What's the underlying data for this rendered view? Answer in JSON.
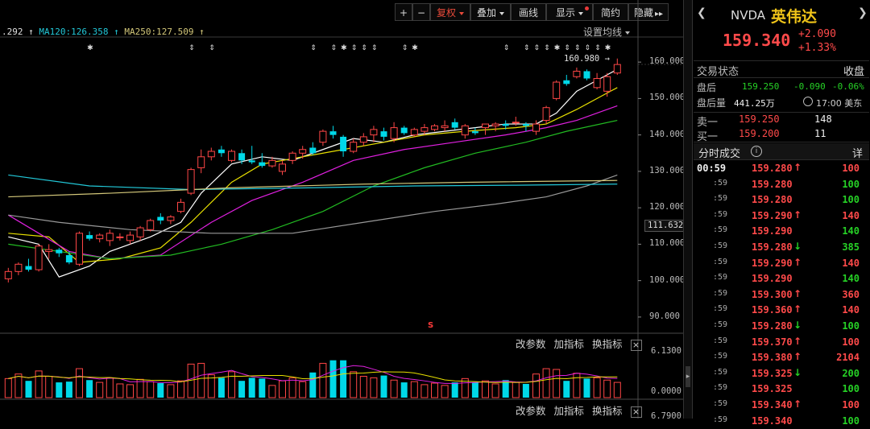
{
  "toolbar": {
    "plus": "+",
    "minus": "−",
    "fuquan": "复权",
    "diejia": "叠加",
    "huaxian": "画线",
    "xianshi": "显示",
    "jianyue": "简约",
    "yincang": "隐藏",
    "yincang_arrows": "▸▸"
  },
  "ma_bar": {
    "ma_prev_value": ".292",
    "ma120": "MA120:126.358",
    "ma250": "MA250:127.509",
    "settings": "设置均线"
  },
  "price_axis": {
    "ticks": [
      "160.000",
      "150.000",
      "140.000",
      "130.000",
      "120.000",
      "110.000",
      "100.000",
      "90.000"
    ],
    "current_label": "111.632",
    "high_annotation": "160.980"
  },
  "indicator_controls": {
    "change_params": "改参数",
    "add_indicator": "加指标",
    "switch_indicator": "换指标",
    "close": "×"
  },
  "volume_axis": {
    "top": "6.1300",
    "bottom": "0.0000",
    "lower_cut": "6.7900"
  },
  "marker_s": "S",
  "stock": {
    "code": "NVDA",
    "name": "英伟达",
    "price": "159.340",
    "change": "+2.090",
    "change_pct": "+1.33%",
    "status_label": "交易状态",
    "status_value": "收盘",
    "after_label": "盘后",
    "after_price": "159.250",
    "after_change": "-0.090",
    "after_pct": "-0.06%",
    "after_vol_label": "盘后量",
    "after_vol": "441.25万",
    "time": "17:00 美东",
    "sell1_label": "卖一",
    "sell1_price": "159.250",
    "sell1_vol": "148",
    "buy1_label": "买一",
    "buy1_price": "159.200",
    "buy1_vol": "11",
    "ticks_title": "分时成交",
    "detail": "详"
  },
  "trades": [
    {
      "time": "00:59",
      "price": "159.280",
      "dir": "up",
      "vol": "100"
    },
    {
      "time": ":59",
      "price": "159.280",
      "dir": "",
      "vol": "100"
    },
    {
      "time": ":59",
      "price": "159.280",
      "dir": "",
      "vol": "100"
    },
    {
      "time": ":59",
      "price": "159.290",
      "dir": "up",
      "vol": "140"
    },
    {
      "time": ":59",
      "price": "159.290",
      "dir": "",
      "vol": "140"
    },
    {
      "time": ":59",
      "price": "159.280",
      "dir": "down",
      "vol": "385"
    },
    {
      "time": ":59",
      "price": "159.290",
      "dir": "up",
      "vol": "140"
    },
    {
      "time": ":59",
      "price": "159.290",
      "dir": "",
      "vol": "140"
    },
    {
      "time": ":59",
      "price": "159.300",
      "dir": "up",
      "vol": "360"
    },
    {
      "time": ":59",
      "price": "159.360",
      "dir": "up",
      "vol": "140"
    },
    {
      "time": ":59",
      "price": "159.280",
      "dir": "down",
      "vol": "100"
    },
    {
      "time": ":59",
      "price": "159.370",
      "dir": "up",
      "vol": "100"
    },
    {
      "time": ":59",
      "price": "159.380",
      "dir": "up",
      "vol": "2104"
    },
    {
      "time": ":59",
      "price": "159.325",
      "dir": "down",
      "vol": "200"
    },
    {
      "time": ":59",
      "price": "159.325",
      "dir": "",
      "vol": "100"
    },
    {
      "time": ":59",
      "price": "159.340",
      "dir": "up",
      "vol": "100"
    },
    {
      "time": ":59",
      "price": "159.340",
      "dir": "",
      "vol": "100"
    }
  ],
  "chart_data": {
    "type": "candlestick",
    "ylim": [
      86,
      166
    ],
    "candles": [
      [
        100.5,
        103.5,
        99.5,
        102.5
      ],
      [
        102.5,
        105.0,
        101.5,
        104.5
      ],
      [
        104.0,
        106.0,
        102.5,
        103.0
      ],
      [
        103.0,
        110.0,
        102.5,
        109.5
      ],
      [
        108.0,
        110.0,
        106.0,
        108.5
      ],
      [
        108.5,
        109.0,
        106.5,
        107.5
      ],
      [
        107.0,
        108.0,
        104.5,
        105.0
      ],
      [
        104.5,
        113.5,
        104.0,
        113.0
      ],
      [
        112.5,
        113.5,
        111.0,
        111.5
      ],
      [
        111.5,
        113.0,
        110.5,
        112.5
      ],
      [
        111.0,
        114.0,
        109.5,
        113.0
      ],
      [
        112.0,
        113.0,
        111.0,
        112.0
      ],
      [
        111.0,
        113.5,
        110.0,
        112.5
      ],
      [
        112.0,
        115.0,
        111.0,
        114.5
      ],
      [
        114.0,
        117.0,
        113.5,
        116.5
      ],
      [
        117.5,
        118.5,
        115.5,
        116.5
      ],
      [
        116.5,
        118.0,
        115.5,
        117.5
      ],
      [
        119.0,
        122.5,
        118.5,
        121.5
      ],
      [
        124.0,
        131.0,
        123.5,
        130.5
      ],
      [
        131.0,
        136.0,
        129.5,
        134.0
      ],
      [
        134.0,
        136.5,
        133.0,
        135.5
      ],
      [
        136.0,
        137.0,
        134.0,
        135.0
      ],
      [
        133.0,
        136.0,
        132.5,
        135.5
      ],
      [
        135.0,
        136.0,
        132.0,
        133.0
      ],
      [
        133.0,
        137.0,
        132.0,
        132.5
      ],
      [
        132.5,
        135.0,
        131.0,
        131.5
      ],
      [
        131.5,
        134.0,
        131.0,
        133.0
      ],
      [
        130.0,
        133.0,
        129.0,
        132.0
      ],
      [
        133.0,
        135.5,
        132.0,
        135.0
      ],
      [
        135.0,
        137.0,
        133.5,
        136.0
      ],
      [
        136.5,
        138.0,
        134.5,
        135.0
      ],
      [
        138.0,
        141.5,
        137.0,
        141.0
      ],
      [
        141.0,
        142.5,
        139.0,
        140.0
      ],
      [
        139.5,
        140.0,
        134.0,
        135.5
      ],
      [
        135.5,
        139.0,
        135.0,
        138.0
      ],
      [
        138.0,
        140.5,
        137.0,
        139.5
      ],
      [
        140.0,
        142.5,
        138.0,
        141.5
      ],
      [
        141.0,
        142.0,
        138.5,
        139.5
      ],
      [
        139.0,
        143.5,
        138.0,
        142.0
      ],
      [
        142.0,
        142.5,
        140.0,
        140.5
      ],
      [
        140.0,
        142.0,
        139.5,
        141.5
      ],
      [
        141.0,
        143.0,
        140.0,
        142.0
      ],
      [
        141.5,
        143.0,
        141.0,
        142.5
      ],
      [
        142.0,
        144.0,
        141.0,
        142.5
      ],
      [
        143.5,
        144.5,
        141.5,
        142.0
      ],
      [
        140.0,
        143.0,
        139.0,
        142.5
      ],
      [
        141.0,
        142.0,
        140.0,
        140.5
      ],
      [
        142.0,
        143.0,
        140.0,
        143.0
      ],
      [
        142.5,
        143.5,
        141.0,
        143.0
      ],
      [
        143.0,
        144.0,
        141.5,
        142.5
      ],
      [
        143.5,
        145.0,
        142.5,
        143.5
      ],
      [
        143.0,
        143.5,
        141.0,
        142.5
      ],
      [
        141.0,
        144.0,
        140.0,
        143.0
      ],
      [
        144.0,
        148.0,
        143.0,
        147.5
      ],
      [
        150.0,
        155.0,
        149.5,
        154.5
      ],
      [
        155.0,
        156.5,
        153.5,
        154.0
      ],
      [
        156.0,
        158.5,
        155.5,
        157.5
      ],
      [
        157.5,
        158.0,
        155.0,
        155.5
      ],
      [
        153.0,
        157.0,
        152.5,
        155.5
      ],
      [
        152.0,
        157.0,
        150.5,
        156.0
      ],
      [
        157.0,
        160.98,
        156.5,
        159.34
      ]
    ],
    "ma_lines": [
      {
        "name": "MA5",
        "color": "#ffffff",
        "points": [
          [
            0,
            112
          ],
          [
            3,
            110
          ],
          [
            5,
            101
          ],
          [
            8,
            104
          ],
          [
            10,
            108
          ],
          [
            14,
            112
          ],
          [
            17,
            116
          ],
          [
            19,
            124
          ],
          [
            22,
            132
          ],
          [
            25,
            134
          ],
          [
            28,
            133
          ],
          [
            31,
            136
          ],
          [
            34,
            139
          ],
          [
            37,
            138
          ],
          [
            40,
            140
          ],
          [
            43,
            141
          ],
          [
            46,
            142
          ],
          [
            49,
            143
          ],
          [
            52,
            143
          ],
          [
            54,
            146
          ],
          [
            56,
            152
          ],
          [
            58,
            155
          ],
          [
            60,
            158
          ]
        ]
      },
      {
        "name": "MA10",
        "color": "#e8e000",
        "points": [
          [
            0,
            113
          ],
          [
            4,
            112
          ],
          [
            7,
            105
          ],
          [
            11,
            106
          ],
          [
            15,
            109
          ],
          [
            18,
            116
          ],
          [
            22,
            127
          ],
          [
            25,
            132
          ],
          [
            29,
            134
          ],
          [
            33,
            136
          ],
          [
            37,
            138
          ],
          [
            41,
            140
          ],
          [
            45,
            141
          ],
          [
            50,
            142
          ],
          [
            53,
            143
          ],
          [
            56,
            147
          ],
          [
            58,
            150
          ],
          [
            60,
            153
          ]
        ]
      },
      {
        "name": "MA20",
        "color": "#e020e0",
        "points": [
          [
            0,
            118
          ],
          [
            6,
            108
          ],
          [
            10,
            106
          ],
          [
            15,
            107
          ],
          [
            20,
            116
          ],
          [
            24,
            122
          ],
          [
            29,
            127
          ],
          [
            34,
            133
          ],
          [
            39,
            136
          ],
          [
            44,
            138
          ],
          [
            49,
            140
          ],
          [
            53,
            142
          ],
          [
            56,
            144
          ],
          [
            60,
            148
          ]
        ]
      },
      {
        "name": "MA30",
        "color": "#22bb22",
        "points": [
          [
            0,
            110
          ],
          [
            5,
            108
          ],
          [
            10,
            106
          ],
          [
            16,
            107
          ],
          [
            21,
            110
          ],
          [
            26,
            114
          ],
          [
            31,
            119
          ],
          [
            36,
            126
          ],
          [
            41,
            131
          ],
          [
            46,
            135
          ],
          [
            51,
            138
          ],
          [
            55,
            141
          ],
          [
            60,
            144
          ]
        ]
      },
      {
        "name": "MA60",
        "color": "#999999",
        "points": [
          [
            0,
            118
          ],
          [
            5,
            116
          ],
          [
            12,
            114
          ],
          [
            20,
            113
          ],
          [
            28,
            113
          ],
          [
            35,
            116
          ],
          [
            42,
            119
          ],
          [
            48,
            121
          ],
          [
            53,
            123
          ],
          [
            57,
            126
          ],
          [
            60,
            129
          ]
        ]
      },
      {
        "name": "MA120",
        "color": "#22c8d8",
        "points": [
          [
            0,
            129
          ],
          [
            8,
            126
          ],
          [
            18,
            125
          ],
          [
            30,
            125.5
          ],
          [
            40,
            126
          ],
          [
            50,
            126.2
          ],
          [
            60,
            126.5
          ]
        ]
      },
      {
        "name": "MA250",
        "color": "#d4c87a",
        "points": [
          [
            0,
            123
          ],
          [
            10,
            124
          ],
          [
            22,
            125.5
          ],
          [
            35,
            126.5
          ],
          [
            45,
            127
          ],
          [
            60,
            127.5
          ]
        ]
      }
    ],
    "volume": [
      2.5,
      3.1,
      2.2,
      3.5,
      2.8,
      2.0,
      2.1,
      3.8,
      2.3,
      2.0,
      2.6,
      1.8,
      1.7,
      2.4,
      2.1,
      1.9,
      1.7,
      2.2,
      4.4,
      4.5,
      3.0,
      2.6,
      3.4,
      2.2,
      2.6,
      2.5,
      1.6,
      2.2,
      2.6,
      2.1,
      3.3,
      4.5,
      4.9,
      4.9,
      3.4,
      2.8,
      2.6,
      2.9,
      2.3,
      2.0,
      2.1,
      1.7,
      1.9,
      1.6,
      2.0,
      2.5,
      2.0,
      2.2,
      1.8,
      2.3,
      2.0,
      1.8,
      3.1,
      3.8,
      3.7,
      2.2,
      3.2,
      2.5,
      2.6,
      2.3,
      2.0
    ]
  }
}
